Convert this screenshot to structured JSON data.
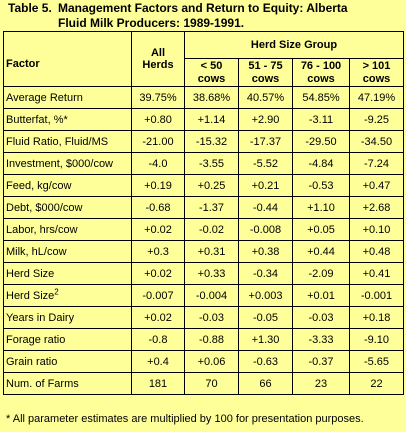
{
  "title": {
    "number": "Table 5.",
    "line1": "Management Factors and Return to  Equity: Alberta",
    "line2": "Fluid Milk Producers: 1989-1991."
  },
  "header": {
    "factor": "Factor",
    "all_herds_1": "All",
    "all_herds_2": "Herds",
    "group": "Herd Size Group",
    "groups": [
      {
        "l1": "< 50",
        "l2": "cows"
      },
      {
        "l1": "51 - 75",
        "l2": "cows"
      },
      {
        "l1": "76 - 100",
        "l2": "cows"
      },
      {
        "l1": "> 101",
        "l2": "cows"
      }
    ]
  },
  "rows": [
    {
      "factor": "Average Return",
      "sup": "",
      "values": [
        "39.75%",
        "38.68%",
        "40.57%",
        "54.85%",
        "47.19%"
      ]
    },
    {
      "factor": "Butterfat, %*",
      "sup": "",
      "values": [
        "+0.80",
        "+1.14",
        "+2.90",
        "-3.11",
        "-9.25"
      ]
    },
    {
      "factor": "Fluid Ratio, Fluid/MS",
      "sup": "",
      "values": [
        "-21.00",
        "-15.32",
        "-17.37",
        "-29.50",
        "-34.50"
      ]
    },
    {
      "factor": "Investment, $000/cow",
      "sup": "",
      "values": [
        "-4.0",
        "-3.55",
        "-5.52",
        "-4.84",
        "-7.24"
      ]
    },
    {
      "factor": "Feed, kg/cow",
      "sup": "",
      "values": [
        "+0.19",
        "+0.25",
        "+0.21",
        "-0.53",
        "+0.47"
      ]
    },
    {
      "factor": "Debt, $000/cow",
      "sup": "",
      "values": [
        "-0.68",
        "-1.37",
        "-0.44",
        "+1.10",
        "+2.68"
      ]
    },
    {
      "factor": "Labor, hrs/cow",
      "sup": "",
      "values": [
        "+0.02",
        "-0.02",
        "-0.008",
        "+0.05",
        "+0.10"
      ]
    },
    {
      "factor": "Milk, hL/cow",
      "sup": "",
      "values": [
        "+0.3",
        "+0.31",
        "+0.38",
        "+0.44",
        "+0.48"
      ]
    },
    {
      "factor": "Herd Size",
      "sup": "",
      "values": [
        "+0.02",
        "+0.33",
        "-0.34",
        "-2.09",
        "+0.41"
      ]
    },
    {
      "factor": "Herd Size",
      "sup": "2",
      "values": [
        "-0.007",
        "-0.004",
        "+0.003",
        "+0.01",
        "-0.001"
      ]
    },
    {
      "factor": "Years in Dairy",
      "sup": "",
      "values": [
        "+0.02",
        "-0.03",
        "-0.05",
        "-0.03",
        "+0.18"
      ]
    },
    {
      "factor": "Forage ratio",
      "sup": "",
      "values": [
        "-0.8",
        "-0.88",
        "+1.30",
        "-3.33",
        "-9.10"
      ]
    },
    {
      "factor": "Grain ratio",
      "sup": "",
      "values": [
        "+0.4",
        "+0.06",
        "-0.63",
        "-0.37",
        "-5.65"
      ]
    },
    {
      "factor": "Num. of Farms",
      "sup": "",
      "values": [
        "181",
        "70",
        "66",
        "23",
        "22"
      ]
    }
  ],
  "footnote": "* All parameter estimates are multiplied by 100 for presentation purposes."
}
